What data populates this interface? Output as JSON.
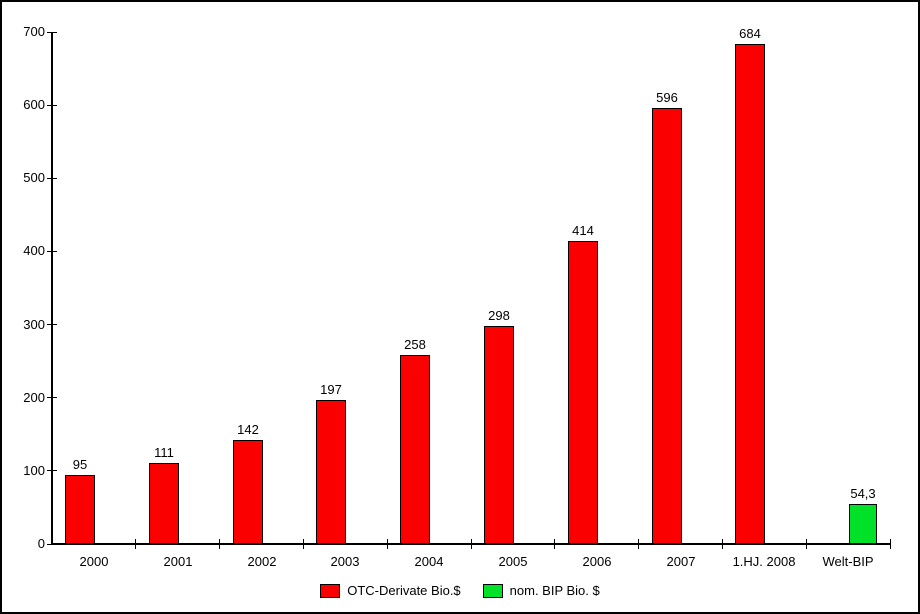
{
  "chart_data": {
    "type": "bar",
    "title": "",
    "xlabel": "",
    "ylabel": "",
    "categories": [
      "2000",
      "2001",
      "2002",
      "2003",
      "2004",
      "2005",
      "2006",
      "2007",
      "1.HJ. 2008",
      "Welt-BIP"
    ],
    "series": [
      {
        "name": "OTC-Derivate Bio.$",
        "color": "#fb0000",
        "values": [
          95,
          111,
          142,
          197,
          258,
          298,
          414,
          596,
          684,
          null
        ],
        "labels": [
          "95",
          "111",
          "142",
          "197",
          "258",
          "298",
          "414",
          "596",
          "684",
          null
        ]
      },
      {
        "name": "nom. BIP Bio. $",
        "color": "#00e128",
        "values": [
          null,
          null,
          null,
          null,
          null,
          null,
          null,
          null,
          null,
          54.3
        ],
        "labels": [
          null,
          null,
          null,
          null,
          null,
          null,
          null,
          null,
          null,
          "54,3"
        ]
      }
    ],
    "ylim": [
      0,
      700
    ],
    "yticks": [
      0,
      100,
      200,
      300,
      400,
      500,
      600,
      700
    ],
    "grid": false,
    "legend_position": "bottom",
    "colors": {
      "bar_border": "#000000",
      "axis": "#000000",
      "background": "#ffffff",
      "text": "#000000"
    }
  }
}
